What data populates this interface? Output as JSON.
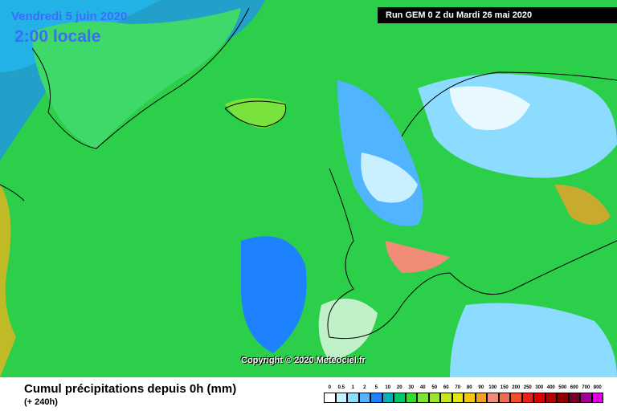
{
  "header": {
    "date": "Vendredi 5 juin 2020",
    "time": "2:00 locale",
    "run": "Run GEM 0 Z du Mardi 26 mai 2020"
  },
  "copyright": "Copyright © 2020 Meteociel.fr",
  "caption": {
    "title": "Cumul précipitations depuis 0h (mm)",
    "lead": "(+ 240h)"
  },
  "legend": {
    "items": [
      {
        "label": "0",
        "color": "#ffffff"
      },
      {
        "label": "0.5",
        "color": "#c8f0ff"
      },
      {
        "label": "1",
        "color": "#8cdcff"
      },
      {
        "label": "2",
        "color": "#50b4ff"
      },
      {
        "label": "5",
        "color": "#1e82ff"
      },
      {
        "label": "10",
        "color": "#00b4b4"
      },
      {
        "label": "20",
        "color": "#00c864"
      },
      {
        "label": "30",
        "color": "#32dc32"
      },
      {
        "label": "40",
        "color": "#78e632"
      },
      {
        "label": "50",
        "color": "#a0e628"
      },
      {
        "label": "60",
        "color": "#c8e61e"
      },
      {
        "label": "70",
        "color": "#e6e614"
      },
      {
        "label": "80",
        "color": "#f0c814"
      },
      {
        "label": "90",
        "color": "#f0a028"
      },
      {
        "label": "100",
        "color": "#f08c78"
      },
      {
        "label": "150",
        "color": "#f06e50"
      },
      {
        "label": "200",
        "color": "#f05028"
      },
      {
        "label": "250",
        "color": "#f01e1e"
      },
      {
        "label": "300",
        "color": "#dc0000"
      },
      {
        "label": "400",
        "color": "#b40000"
      },
      {
        "label": "500",
        "color": "#8c0000"
      },
      {
        "label": "600",
        "color": "#780028"
      },
      {
        "label": "700",
        "color": "#a00096"
      },
      {
        "label": "800",
        "color": "#dc00dc"
      }
    ]
  }
}
